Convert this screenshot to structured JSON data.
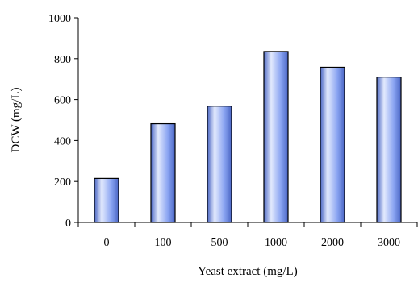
{
  "chart_data": {
    "type": "bar",
    "title": "",
    "xlabel": "Yeast extract (mg/L)",
    "ylabel": "DCW (mg/L)",
    "categories": [
      "0",
      "100",
      "500",
      "1000",
      "2000",
      "3000"
    ],
    "values": [
      215,
      482,
      568,
      835,
      758,
      710
    ],
    "ylim": [
      0,
      1000
    ],
    "yticks": [
      "0",
      "200",
      "400",
      "600",
      "800",
      "1000"
    ],
    "grid": false,
    "legend": "none",
    "bar_color": "#8aa4f2",
    "bar_highlight": "#e3eafd",
    "bar_shadow": "#4a66c4",
    "bar_outline": "#000000"
  }
}
